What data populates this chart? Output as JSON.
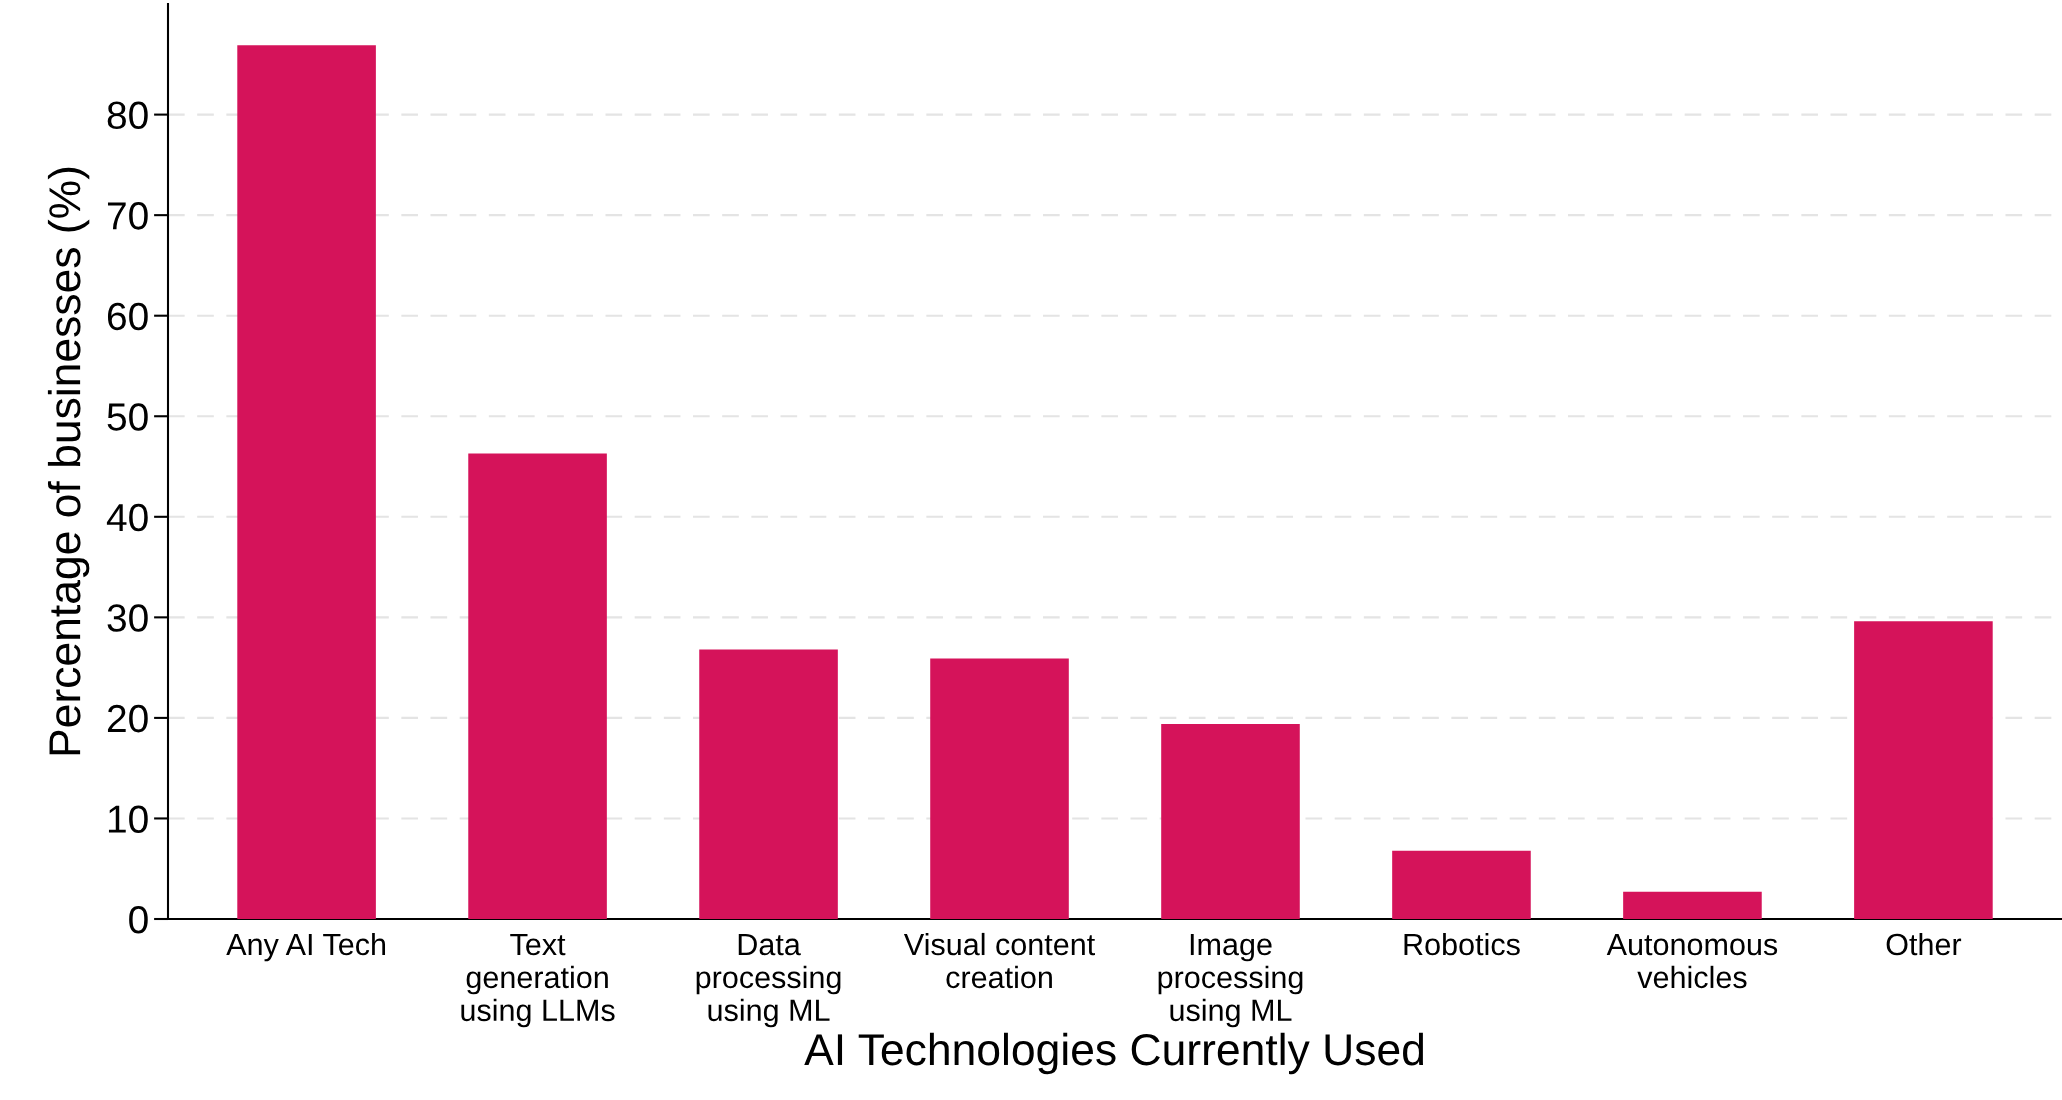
{
  "chart_data": {
    "type": "bar",
    "xlabel": "AI Technologies Currently Used",
    "ylabel": "Percentage of businesses (%)",
    "categories": [
      "Any AI Tech",
      "Text\ngeneration\nusing LLMs",
      "Data\nprocessing\nusing ML",
      "Visual content\ncreation",
      "Image\nprocessing\nusing ML",
      "Robotics",
      "Autonomous\nvehicles",
      "Other"
    ],
    "values": [
      86.9,
      46.3,
      26.8,
      25.9,
      19.4,
      6.8,
      2.7,
      29.6
    ],
    "color": "#d5135a",
    "ylim": [
      0,
      91
    ],
    "yticks": [
      0,
      10,
      20,
      30,
      40,
      50,
      60,
      70,
      80
    ],
    "grid": "y"
  }
}
